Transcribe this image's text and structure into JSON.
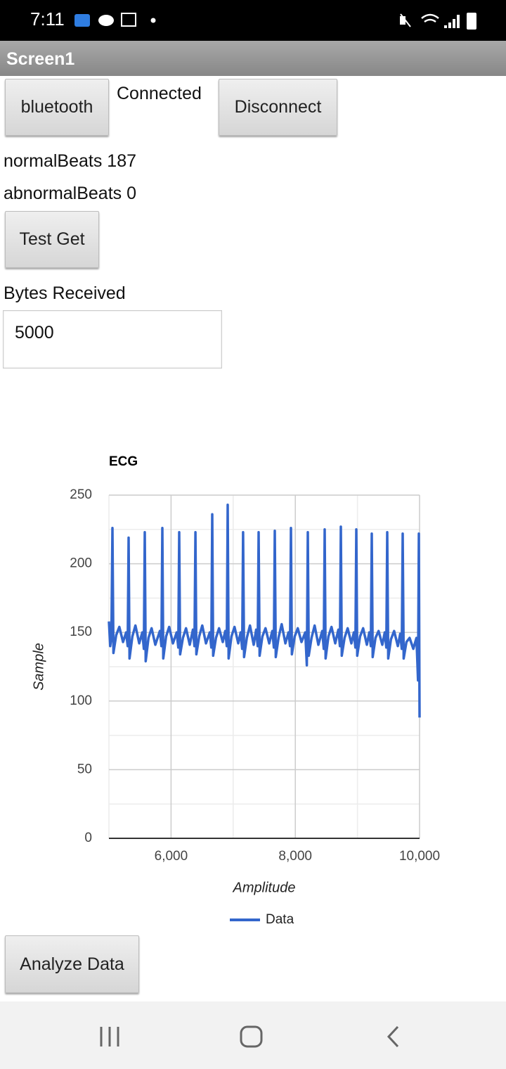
{
  "status_bar": {
    "time": "7:11"
  },
  "title_bar": {
    "title": "Screen1"
  },
  "controls": {
    "bluetooth_button": "bluetooth",
    "status_label": "Connected",
    "disconnect_button": "Disconnect",
    "normal_beats": "normalBeats 187",
    "abnormal_beats": "abnormalBeats 0",
    "test_get_button": "Test Get",
    "bytes_label": "Bytes Received",
    "bytes_box": "5000",
    "analyze_button": "Analyze Data"
  },
  "chart_data": {
    "type": "line",
    "title": "ECG",
    "x_label": "Amplitude",
    "y_label": "Sample",
    "x": [
      5000,
      5020,
      5040,
      5057,
      5072,
      5117,
      5167,
      5227,
      5277,
      5302,
      5317,
      5332,
      5377,
      5427,
      5487,
      5537,
      5562,
      5577,
      5592,
      5637,
      5687,
      5747,
      5820,
      5845,
      5860,
      5875,
      5920,
      5970,
      6030,
      6091,
      6116,
      6131,
      6146,
      6191,
      6241,
      6301,
      6352,
      6377,
      6392,
      6407,
      6452,
      6502,
      6562,
      6623,
      6648,
      6663,
      6678,
      6723,
      6773,
      6833,
      6872,
      6897,
      6912,
      6927,
      6972,
      7022,
      7082,
      7120,
      7145,
      7160,
      7175,
      7220,
      7270,
      7330,
      7370,
      7395,
      7410,
      7425,
      7470,
      7520,
      7580,
      7630,
      7655,
      7670,
      7685,
      7730,
      7780,
      7840,
      7890,
      7915,
      7930,
      7945,
      7990,
      8040,
      8100,
      8161,
      8186,
      8201,
      8216,
      8261,
      8311,
      8371,
      8433,
      8458,
      8473,
      8488,
      8533,
      8583,
      8643,
      8693,
      8718,
      8733,
      8748,
      8793,
      8843,
      8903,
      8942,
      8967,
      8982,
      8997,
      9042,
      9092,
      9152,
      9191,
      9216,
      9231,
      9246,
      9291,
      9341,
      9401,
      9440,
      9465,
      9480,
      9495,
      9540,
      9590,
      9650,
      9689,
      9714,
      9729,
      9744,
      9789,
      9839,
      9899,
      9950,
      9965,
      9975,
      9989,
      10000
    ],
    "series": [
      {
        "name": "Data",
        "color": "#3366cc",
        "values": [
          158,
          140,
          146,
          226,
          135,
          148,
          154,
          143,
          150,
          140,
          219,
          131,
          147,
          155,
          142,
          150,
          138,
          223,
          129,
          146,
          153,
          141,
          151,
          140,
          226,
          131,
          147,
          154,
          142,
          150,
          139,
          223,
          134,
          146,
          153,
          141,
          152,
          140,
          223,
          134,
          147,
          155,
          142,
          150,
          139,
          236,
          133,
          146,
          153,
          143,
          151,
          140,
          243,
          131,
          147,
          154,
          142,
          150,
          138,
          223,
          132,
          146,
          155,
          141,
          152,
          140,
          223,
          133,
          147,
          153,
          142,
          151,
          139,
          224,
          132,
          146,
          156,
          142,
          150,
          140,
          226,
          134,
          147,
          153,
          143,
          150,
          126,
          223,
          133,
          146,
          155,
          141,
          151,
          138,
          225,
          131,
          147,
          154,
          142,
          152,
          140,
          227,
          133,
          146,
          153,
          142,
          150,
          139,
          225,
          133,
          147,
          153,
          141,
          150,
          140,
          222,
          132,
          146,
          151,
          141,
          150,
          139,
          223,
          131,
          145,
          151,
          140,
          149,
          138,
          222,
          131,
          143,
          146,
          138,
          146,
          128,
          115,
          222,
          88
        ]
      }
    ],
    "xlim": [
      5000,
      10000
    ],
    "xticks": [
      {
        "value": 6000,
        "label": "6,000"
      },
      {
        "value": 8000,
        "label": "8,000"
      },
      {
        "value": 10000,
        "label": "10,000"
      }
    ],
    "x_minor_grid": [
      5000,
      7000,
      9000
    ],
    "ylim": [
      0,
      250
    ],
    "yticks": [
      0,
      50,
      100,
      150,
      200,
      250
    ],
    "y_minor_grid": [
      25,
      75,
      125,
      175,
      225
    ],
    "grid": true,
    "legend": "bottom"
  }
}
